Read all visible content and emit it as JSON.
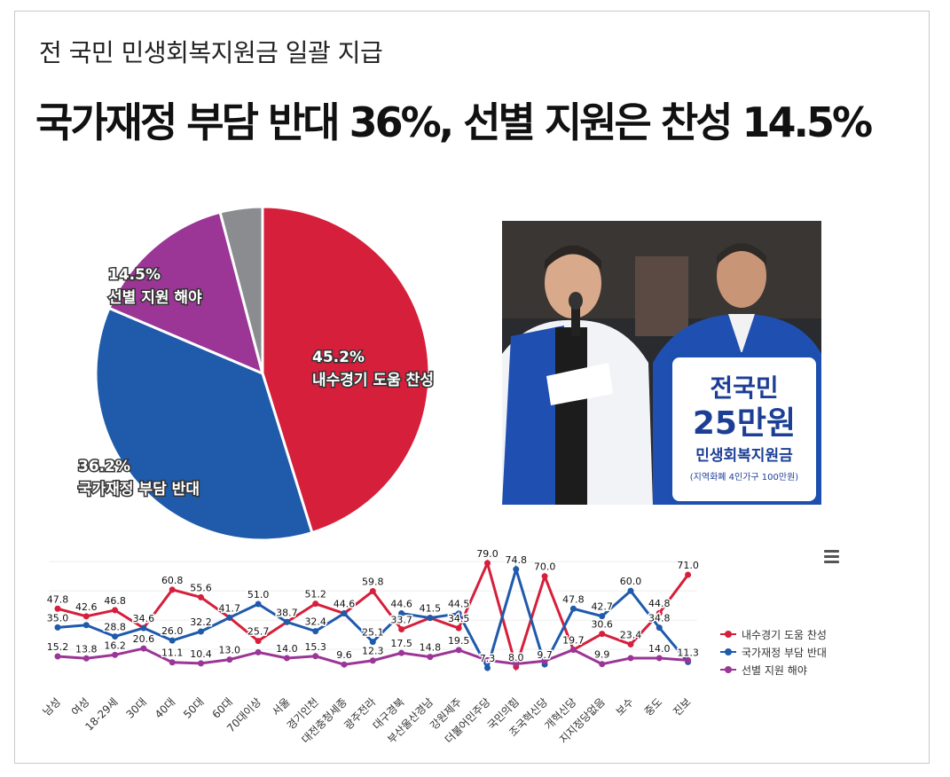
{
  "header": {
    "subtitle": "전 국민 민생회복지원금 일괄 지급",
    "title": "국가재정 부담 반대 36%,  선별 지원은 찬성 14.5%"
  },
  "photo": {
    "sign_line1": "전국민",
    "sign_line2": "25만원",
    "sign_line3": "민생회복지원금",
    "sign_line4": "(지역화폐 4인가구 100만원)"
  },
  "colors": {
    "red": "#d51f3b",
    "blue": "#1f5aab",
    "purple": "#9b3596",
    "gray": "#8a8c8f"
  },
  "chart_data": [
    {
      "type": "pie",
      "slices": [
        {
          "label": "내수경기 도움 찬성",
          "pct_label": "45.2%",
          "value": 45.2,
          "color": "#d51f3b"
        },
        {
          "label": "국가재정 부담 반대",
          "pct_label": "36.2%",
          "value": 36.2,
          "color": "#1f5aab"
        },
        {
          "label": "선별 지원 해야",
          "pct_label": "14.5%",
          "value": 14.5,
          "color": "#9b3596"
        },
        {
          "label": "",
          "pct_label": "",
          "value": 4.1,
          "color": "#8a8c8f"
        }
      ]
    },
    {
      "type": "line",
      "categories": [
        "남성",
        "여성",
        "18-29세",
        "30대",
        "40대",
        "50대",
        "60대",
        "70대이상",
        "서울",
        "경기인천",
        "대전충청세종",
        "광주전라",
        "대구경북",
        "부산울산경남",
        "강원제주",
        "더불어민주당",
        "국민의힘",
        "조국혁신당",
        "개혁신당",
        "지지정당없음",
        "보수",
        "중도",
        "진보"
      ],
      "series": [
        {
          "name": "내수경기 도움 찬성",
          "color": "#d51f3b",
          "values": [
            47.8,
            42.6,
            46.8,
            34.6,
            60.8,
            55.6,
            41.7,
            25.7,
            38.7,
            51.2,
            44.6,
            59.8,
            33.7,
            41.5,
            34.5,
            79.0,
            8.0,
            70.0,
            19.7,
            30.6,
            23.4,
            44.8,
            71.0
          ]
        },
        {
          "name": "국가재정 부담 반대",
          "color": "#1f5aab",
          "values": [
            35.0,
            36.6,
            28.8,
            34.6,
            26.0,
            32.2,
            41.7,
            51.0,
            38.7,
            32.4,
            44.6,
            25.1,
            44.6,
            41.5,
            44.5,
            7.3,
            74.8,
            9.7,
            47.8,
            42.7,
            60.0,
            34.8,
            11.3
          ]
        },
        {
          "name": "선별 지원 해야",
          "color": "#9b3596",
          "values": [
            15.2,
            13.8,
            16.2,
            20.6,
            11.1,
            10.4,
            13.0,
            18.0,
            14.0,
            15.3,
            9.6,
            12.3,
            17.5,
            14.8,
            19.5,
            12.5,
            10.0,
            12.0,
            19.7,
            9.9,
            14.0,
            14.0,
            12.5
          ]
        }
      ],
      "point_labels": {
        "내수경기 도움 찬성": [
          "47.8",
          "42.6",
          "46.8",
          "",
          "60.8",
          "55.6",
          "",
          "25.7",
          "",
          "51.2",
          "44.6",
          "59.8",
          "33.7",
          "",
          "34.5",
          "79.0",
          "8.0",
          "70.0",
          "",
          "30.6",
          "23.4",
          "44.8",
          "71.0"
        ],
        "국가재정 부담 반대": [
          "35.0",
          "",
          "28.8",
          "34.6",
          "26.0",
          "32.2",
          "41.7",
          "51.0",
          "38.7",
          "32.4",
          "",
          "25.1",
          "44.6",
          "41.5",
          "44.5",
          "7.3",
          "74.8",
          "9.7",
          "47.8",
          "42.7",
          "60.0",
          "34.8",
          "11.3"
        ],
        "선별 지원 해야": [
          "15.2",
          "13.8",
          "16.2",
          "20.6",
          "11.1",
          "10.4",
          "13.0",
          "",
          "14.0",
          "15.3",
          "9.6",
          "12.3",
          "17.5",
          "14.8",
          "19.5",
          "",
          "",
          "",
          "19.7",
          "9.9",
          "",
          "14.0",
          ""
        ]
      },
      "ylim": [
        0,
        85
      ],
      "legend_position": "right"
    }
  ]
}
